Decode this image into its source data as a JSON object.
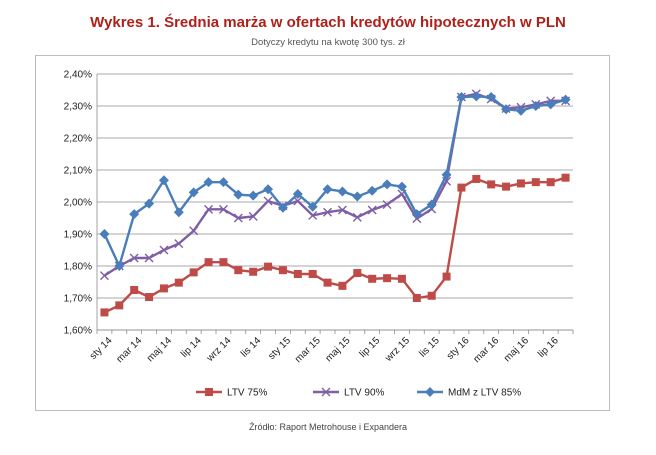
{
  "header": {
    "title": "Wykres 1. Średnia marża w ofertach kredytów hipotecznych w PLN",
    "subtitle": "Dotyczy kredytu na kwotę 300 tys. zł"
  },
  "footer": {
    "source": "Źródło: Raport Metrohouse i Expandera"
  },
  "chart_data": {
    "type": "line",
    "title": "Wykres 1. Średnia marża w ofertach kredytów hipotecznych w PLN",
    "subtitle": "Dotyczy kredytu na kwotę 300 tys. zł",
    "x": [
      "sty 14",
      "lut 14",
      "mar 14",
      "kwi 14",
      "maj 14",
      "cze 14",
      "lip 14",
      "sie 14",
      "wrz 14",
      "paź 14",
      "lis 14",
      "gru 14",
      "sty 15",
      "lut 15",
      "mar 15",
      "kwi 15",
      "maj 15",
      "cze 15",
      "lip 15",
      "sie 15",
      "wrz 15",
      "paź 15",
      "lis 15",
      "gru 15",
      "sty 16",
      "lut 16",
      "mar 16",
      "kwi 16",
      "maj 16",
      "cze 16",
      "lip 16",
      "sie 16"
    ],
    "x_tick_labels": [
      "sty 14",
      "mar 14",
      "maj 14",
      "lip 14",
      "wrz 14",
      "lis 14",
      "sty 15",
      "mar 15",
      "maj 15",
      "lip 15",
      "wrz 15",
      "lis 15",
      "sty 16",
      "mar 16",
      "maj 16",
      "lip 16"
    ],
    "ylim": [
      1.6,
      2.4
    ],
    "y_ticks": [
      1.6,
      1.7,
      1.8,
      1.9,
      2.0,
      2.1,
      2.2,
      2.3,
      2.4
    ],
    "y_tick_labels": [
      "1,60%",
      "1,70%",
      "1,80%",
      "1,90%",
      "2,00%",
      "2,10%",
      "2,20%",
      "2,30%",
      "2,40%"
    ],
    "grid": "horizontal",
    "legend_position": "bottom",
    "series": [
      {
        "name": "LTV 75%",
        "color": "#be4b48",
        "marker": "square",
        "values": [
          1.655,
          1.677,
          1.725,
          1.703,
          1.73,
          1.748,
          1.78,
          1.812,
          1.812,
          1.787,
          1.782,
          1.798,
          1.787,
          1.775,
          1.775,
          1.748,
          1.738,
          1.778,
          1.76,
          1.762,
          1.76,
          1.7,
          1.707,
          1.767,
          2.045,
          2.072,
          2.055,
          2.048,
          2.058,
          2.062,
          2.062,
          2.076
        ]
      },
      {
        "name": "LTV 90%",
        "color": "#7e5ea5",
        "marker": "cross",
        "values": [
          1.77,
          1.8,
          1.825,
          1.825,
          1.85,
          1.87,
          1.91,
          1.977,
          1.977,
          1.95,
          1.955,
          2.003,
          1.988,
          2.003,
          1.958,
          1.968,
          1.975,
          1.952,
          1.975,
          1.992,
          2.025,
          1.948,
          1.978,
          2.065,
          2.328,
          2.338,
          2.322,
          2.292,
          2.296,
          2.305,
          2.316,
          2.316
        ]
      },
      {
        "name": "MdM z LTV 85%",
        "color": "#4a7ebb",
        "marker": "diamond",
        "values": [
          1.9,
          1.8,
          1.962,
          1.995,
          2.068,
          1.968,
          2.03,
          2.062,
          2.062,
          2.023,
          2.02,
          2.04,
          1.982,
          2.025,
          1.985,
          2.04,
          2.033,
          2.017,
          2.035,
          2.055,
          2.048,
          1.962,
          1.992,
          2.085,
          2.328,
          2.33,
          2.328,
          2.29,
          2.285,
          2.3,
          2.305,
          2.32
        ]
      }
    ]
  }
}
